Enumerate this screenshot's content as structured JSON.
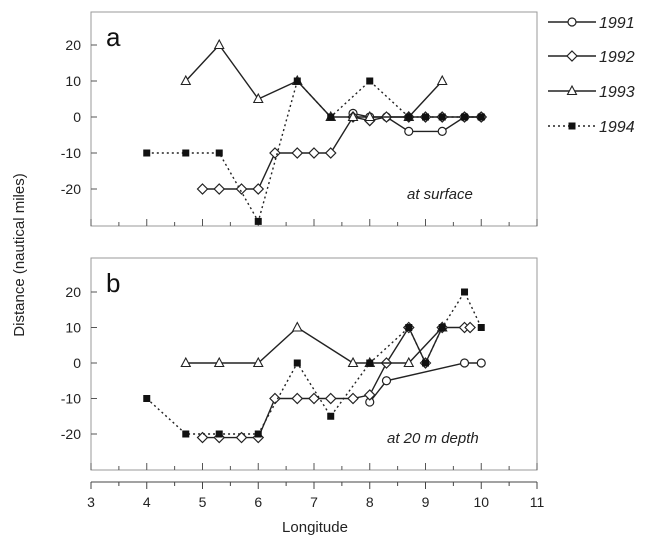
{
  "chart_data": {
    "type": "line",
    "ylabel": "Distance (nautical miles)",
    "xlabel": "Longitude",
    "x_ticks": [
      3,
      4,
      5,
      6,
      7,
      8,
      9,
      10,
      11
    ],
    "y_ticks": [
      20,
      10,
      0,
      -10,
      -20
    ],
    "xlim": [
      3,
      11
    ],
    "legend": {
      "position": "right",
      "entries": [
        {
          "name": "1991",
          "marker": "circle-open",
          "dash": "solid"
        },
        {
          "name": "1992",
          "marker": "diamond-open",
          "dash": "solid"
        },
        {
          "name": "1993",
          "marker": "triangle-open",
          "dash": "solid"
        },
        {
          "name": "1994",
          "marker": "square-filled",
          "dash": "dotted"
        }
      ]
    },
    "panels": [
      {
        "letter": "a",
        "note": "at surface",
        "ylim": [
          -30,
          28
        ],
        "series": [
          {
            "name": "1991",
            "marker": "circle-open",
            "dash": "solid",
            "points": [
              [
                7.7,
                1
              ],
              [
                8,
                0
              ],
              [
                8.3,
                0
              ],
              [
                8.7,
                -4
              ],
              [
                9.3,
                -4
              ],
              [
                9.7,
                0
              ],
              [
                10,
                0
              ]
            ]
          },
          {
            "name": "1992",
            "marker": "diamond-open",
            "dash": "solid",
            "points": [
              [
                5,
                -20
              ],
              [
                5.3,
                -20
              ],
              [
                5.7,
                -20
              ],
              [
                6,
                -20
              ],
              [
                6.3,
                -10
              ],
              [
                6.7,
                -10
              ],
              [
                7,
                -10
              ],
              [
                7.3,
                -10
              ],
              [
                7.7,
                0
              ],
              [
                8,
                -1
              ],
              [
                8.3,
                0
              ],
              [
                8.7,
                0
              ],
              [
                9,
                0
              ],
              [
                9.3,
                0
              ],
              [
                9.7,
                0
              ],
              [
                10,
                0
              ]
            ]
          },
          {
            "name": "1993",
            "marker": "triangle-open",
            "dash": "solid",
            "points": [
              [
                4.7,
                10
              ],
              [
                5.3,
                20
              ],
              [
                6,
                5
              ],
              [
                6.7,
                10
              ],
              [
                7.3,
                0
              ],
              [
                7.7,
                0
              ],
              [
                8,
                0
              ],
              [
                8.7,
                0
              ],
              [
                9.3,
                10
              ]
            ]
          },
          {
            "name": "1994",
            "marker": "square-filled",
            "dash": "dotted",
            "points": [
              [
                4,
                -10
              ],
              [
                4.7,
                -10
              ],
              [
                5.3,
                -10
              ],
              [
                6,
                -29
              ],
              [
                6.7,
                10
              ],
              [
                7.3,
                0
              ],
              [
                8,
                10
              ],
              [
                8.7,
                0
              ],
              [
                9,
                0
              ],
              [
                9.3,
                0
              ],
              [
                9.7,
                0
              ],
              [
                10,
                0
              ]
            ]
          }
        ]
      },
      {
        "letter": "b",
        "note": "at 20 m depth",
        "ylim": [
          -30,
          28
        ],
        "series": [
          {
            "name": "1991",
            "marker": "circle-open",
            "dash": "solid",
            "points": [
              [
                8,
                -11
              ],
              [
                8.3,
                -5
              ],
              [
                9.7,
                0
              ],
              [
                10,
                0
              ]
            ]
          },
          {
            "name": "1992",
            "marker": "diamond-open",
            "dash": "solid",
            "points": [
              [
                5,
                -21
              ],
              [
                5.3,
                -21
              ],
              [
                5.7,
                -21
              ],
              [
                6,
                -21
              ],
              [
                6.3,
                -10
              ],
              [
                6.7,
                -10
              ],
              [
                7,
                -10
              ],
              [
                7.3,
                -10
              ],
              [
                7.7,
                -10
              ],
              [
                8,
                -9
              ],
              [
                8.3,
                0
              ],
              [
                8.7,
                10
              ],
              [
                9,
                0
              ],
              [
                9.3,
                10
              ],
              [
                9.7,
                10
              ],
              [
                9.8,
                10
              ]
            ]
          },
          {
            "name": "1993",
            "marker": "triangle-open",
            "dash": "solid",
            "points": [
              [
                4.7,
                0
              ],
              [
                5.3,
                0
              ],
              [
                6,
                0
              ],
              [
                6.7,
                10
              ],
              [
                7.7,
                0
              ],
              [
                8,
                0
              ],
              [
                8.7,
                0
              ],
              [
                9.3,
                10
              ]
            ]
          },
          {
            "name": "1994",
            "marker": "square-filled",
            "dash": "dotted",
            "points": [
              [
                4,
                -10
              ],
              [
                4.7,
                -20
              ],
              [
                5.3,
                -20
              ],
              [
                6,
                -20
              ],
              [
                6.7,
                0
              ],
              [
                7.3,
                -15
              ],
              [
                8,
                0
              ],
              [
                8.7,
                10
              ],
              [
                9,
                0
              ],
              [
                9.3,
                10
              ],
              [
                9.7,
                20
              ],
              [
                10,
                10
              ]
            ]
          }
        ]
      }
    ]
  }
}
